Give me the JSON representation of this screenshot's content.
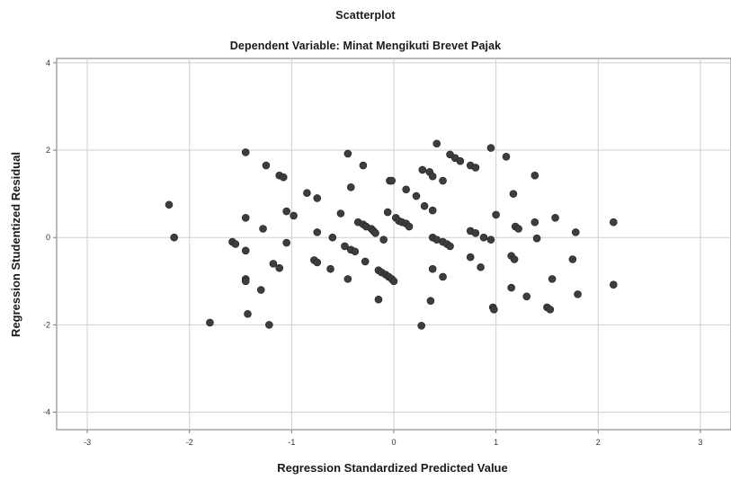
{
  "chart_data": {
    "type": "scatter",
    "title": "Scatterplot",
    "subtitle": "Dependent Variable: Minat Mengikuti Brevet Pajak",
    "xlabel": "Regression Standardized Predicted Value",
    "ylabel": "Regression Studentized Residual",
    "xlim": [
      -3.3,
      3.3
    ],
    "ylim": [
      -4.4,
      4.1
    ],
    "xticks": [
      "-3",
      "-2",
      "-1",
      "0",
      "1",
      "2",
      "3"
    ],
    "yticks": [
      "-4",
      "-2",
      "0",
      "2",
      "4"
    ],
    "grid": true,
    "marker_color": "#3d3d3d",
    "points": [
      [
        -2.2,
        0.75
      ],
      [
        -2.15,
        0.0
      ],
      [
        -1.8,
        -1.95
      ],
      [
        -1.58,
        -0.1
      ],
      [
        -1.55,
        -0.15
      ],
      [
        -1.45,
        1.95
      ],
      [
        -1.45,
        0.45
      ],
      [
        -1.45,
        -0.3
      ],
      [
        -1.45,
        -0.95
      ],
      [
        -1.45,
        -1.0
      ],
      [
        -1.43,
        -1.75
      ],
      [
        -1.3,
        -1.2
      ],
      [
        -1.28,
        0.2
      ],
      [
        -1.25,
        1.65
      ],
      [
        -1.22,
        -2.0
      ],
      [
        -1.18,
        -0.6
      ],
      [
        -1.12,
        -0.7
      ],
      [
        -1.12,
        1.42
      ],
      [
        -1.08,
        1.38
      ],
      [
        -1.05,
        0.6
      ],
      [
        -1.05,
        -0.12
      ],
      [
        -0.98,
        0.5
      ],
      [
        -0.85,
        1.02
      ],
      [
        -0.75,
        0.9
      ],
      [
        -0.75,
        0.12
      ],
      [
        -0.78,
        -0.52
      ],
      [
        -0.75,
        -0.57
      ],
      [
        -0.62,
        -0.72
      ],
      [
        -0.6,
        0.0
      ],
      [
        -0.52,
        0.55
      ],
      [
        -0.48,
        -0.2
      ],
      [
        -0.45,
        1.92
      ],
      [
        -0.42,
        1.15
      ],
      [
        -0.42,
        -0.28
      ],
      [
        -0.45,
        -0.95
      ],
      [
        -0.38,
        -0.32
      ],
      [
        -0.35,
        0.35
      ],
      [
        -0.3,
        0.3
      ],
      [
        -0.3,
        1.65
      ],
      [
        -0.27,
        0.25
      ],
      [
        -0.22,
        0.2
      ],
      [
        -0.2,
        0.15
      ],
      [
        -0.18,
        0.1
      ],
      [
        -0.28,
        -0.55
      ],
      [
        -0.15,
        -0.75
      ],
      [
        -0.12,
        -0.8
      ],
      [
        -0.08,
        -0.85
      ],
      [
        -0.05,
        -0.9
      ],
      [
        -0.02,
        -0.95
      ],
      [
        0.0,
        -1.0
      ],
      [
        -0.15,
        -1.42
      ],
      [
        -0.1,
        -0.05
      ],
      [
        -0.06,
        0.58
      ],
      [
        -0.04,
        1.3
      ],
      [
        -0.02,
        1.3
      ],
      [
        0.02,
        0.45
      ],
      [
        0.05,
        0.38
      ],
      [
        0.08,
        0.35
      ],
      [
        0.12,
        0.32
      ],
      [
        0.15,
        0.25
      ],
      [
        0.12,
        1.1
      ],
      [
        0.22,
        0.95
      ],
      [
        0.3,
        0.72
      ],
      [
        0.38,
        0.62
      ],
      [
        0.28,
        1.55
      ],
      [
        0.35,
        1.5
      ],
      [
        0.38,
        1.4
      ],
      [
        0.42,
        2.15
      ],
      [
        0.48,
        1.3
      ],
      [
        0.38,
        0.0
      ],
      [
        0.42,
        -0.05
      ],
      [
        0.48,
        -0.1
      ],
      [
        0.52,
        -0.15
      ],
      [
        0.55,
        -0.2
      ],
      [
        0.38,
        -0.72
      ],
      [
        0.48,
        -0.9
      ],
      [
        0.36,
        -1.45
      ],
      [
        0.27,
        -2.02
      ],
      [
        0.55,
        1.9
      ],
      [
        0.6,
        1.82
      ],
      [
        0.65,
        1.75
      ],
      [
        0.75,
        1.65
      ],
      [
        0.8,
        1.6
      ],
      [
        0.75,
        -0.45
      ],
      [
        0.75,
        0.15
      ],
      [
        0.8,
        0.1
      ],
      [
        0.88,
        0.0
      ],
      [
        0.95,
        -0.05
      ],
      [
        0.85,
        -0.68
      ],
      [
        0.95,
        2.05
      ],
      [
        0.97,
        -1.6
      ],
      [
        0.98,
        -1.65
      ],
      [
        1.0,
        0.52
      ],
      [
        1.1,
        1.85
      ],
      [
        1.15,
        -0.42
      ],
      [
        1.15,
        -1.15
      ],
      [
        1.17,
        1.0
      ],
      [
        1.18,
        -0.5
      ],
      [
        1.19,
        0.25
      ],
      [
        1.22,
        0.2
      ],
      [
        1.3,
        -1.35
      ],
      [
        1.38,
        1.42
      ],
      [
        1.4,
        -0.02
      ],
      [
        1.38,
        0.35
      ],
      [
        1.5,
        -1.6
      ],
      [
        1.53,
        -1.65
      ],
      [
        1.55,
        -0.95
      ],
      [
        1.58,
        0.45
      ],
      [
        1.75,
        -0.5
      ],
      [
        1.78,
        0.12
      ],
      [
        1.8,
        -1.3
      ],
      [
        2.15,
        0.35
      ],
      [
        2.15,
        -1.08
      ]
    ]
  }
}
